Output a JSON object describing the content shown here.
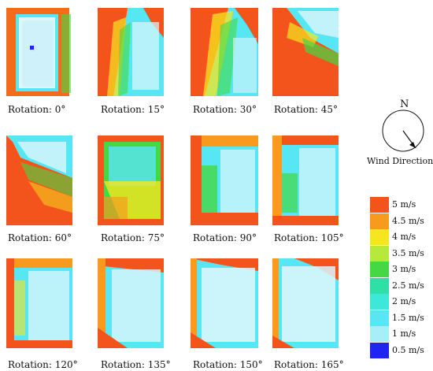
{
  "panels": [
    {
      "caption": "Rotation: 0°",
      "angle": 0
    },
    {
      "caption": "Rotation: 15°",
      "angle": 15
    },
    {
      "caption": "Rotation: 30°",
      "angle": 30
    },
    {
      "caption": "Rotation: 45°",
      "angle": 45
    },
    {
      "caption": "Rotation: 60°",
      "angle": 60
    },
    {
      "caption": "Rotation: 75°",
      "angle": 75
    },
    {
      "caption": "Rotation: 90°",
      "angle": 90
    },
    {
      "caption": "Rotation: 105°",
      "angle": 105
    },
    {
      "caption": "Rotation: 120°",
      "angle": 120
    },
    {
      "caption": "Rotation: 135°",
      "angle": 135
    },
    {
      "caption": "Rotation: 150°",
      "angle": 150
    },
    {
      "caption": "Rotation: 165°",
      "angle": 165
    }
  ],
  "compass": {
    "north_label": "N",
    "caption": "Wind Direction"
  },
  "legend": [
    {
      "label": "5 m/s",
      "color": "#f2541b"
    },
    {
      "label": "4.5 m/s",
      "color": "#f79a1e"
    },
    {
      "label": "4 m/s",
      "color": "#f5e61f"
    },
    {
      "label": "3.5 m/s",
      "color": "#b6e93b"
    },
    {
      "label": "3 m/s",
      "color": "#45d844"
    },
    {
      "label": "2.5 m/s",
      "color": "#2fe0a6"
    },
    {
      "label": "2 m/s",
      "color": "#3ee8d8"
    },
    {
      "label": "1.5 m/s",
      "color": "#56e6f4"
    },
    {
      "label": "1 m/s",
      "color": "#a8eef8"
    },
    {
      "label": "0.5 m/s",
      "color": "#1f24ee"
    }
  ]
}
